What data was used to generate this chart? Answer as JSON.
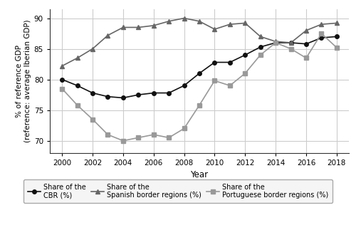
{
  "years": [
    2000,
    2001,
    2002,
    2003,
    2004,
    2005,
    2006,
    2007,
    2008,
    2009,
    2010,
    2011,
    2012,
    2013,
    2014,
    2015,
    2016,
    2017,
    2018
  ],
  "cbr": [
    80.0,
    79.0,
    77.8,
    77.2,
    77.0,
    77.5,
    77.8,
    77.8,
    79.0,
    81.0,
    82.8,
    82.8,
    84.0,
    85.3,
    86.0,
    86.0,
    85.8,
    86.8,
    87.0
  ],
  "spanish": [
    82.2,
    83.5,
    85.0,
    87.2,
    88.5,
    88.5,
    88.8,
    89.5,
    90.0,
    89.5,
    88.2,
    89.0,
    89.2,
    87.0,
    86.2,
    86.0,
    88.0,
    89.0,
    89.2
  ],
  "portuguese": [
    78.5,
    75.8,
    73.5,
    71.0,
    70.0,
    70.5,
    71.0,
    70.5,
    72.0,
    75.8,
    79.8,
    79.0,
    81.0,
    84.0,
    86.0,
    85.0,
    83.5,
    87.5,
    85.2
  ],
  "ylim": [
    68,
    91.5
  ],
  "yticks": [
    70,
    75,
    80,
    85,
    90
  ],
  "xlabel": "Year",
  "ylabel": "% of reference GDP\n(reference: average Iberian GDP)",
  "xticks": [
    2000,
    2002,
    2004,
    2006,
    2008,
    2010,
    2012,
    2014,
    2016,
    2018
  ],
  "legend_cbr": "Share of the\nCBR (%)",
  "legend_spanish": "Share of the\nSpanish border regions (%)",
  "legend_portuguese": "Share of the\nPortuguese border regions (%)",
  "line_color_cbr": "#111111",
  "line_color_spanish": "#666666",
  "line_color_portuguese": "#999999",
  "marker_cbr": "o",
  "marker_spanish": "^",
  "marker_portuguese": "s",
  "background_color": "#ffffff",
  "grid_color": "#cccccc",
  "xlim_left": 1999.2,
  "xlim_right": 2018.8
}
